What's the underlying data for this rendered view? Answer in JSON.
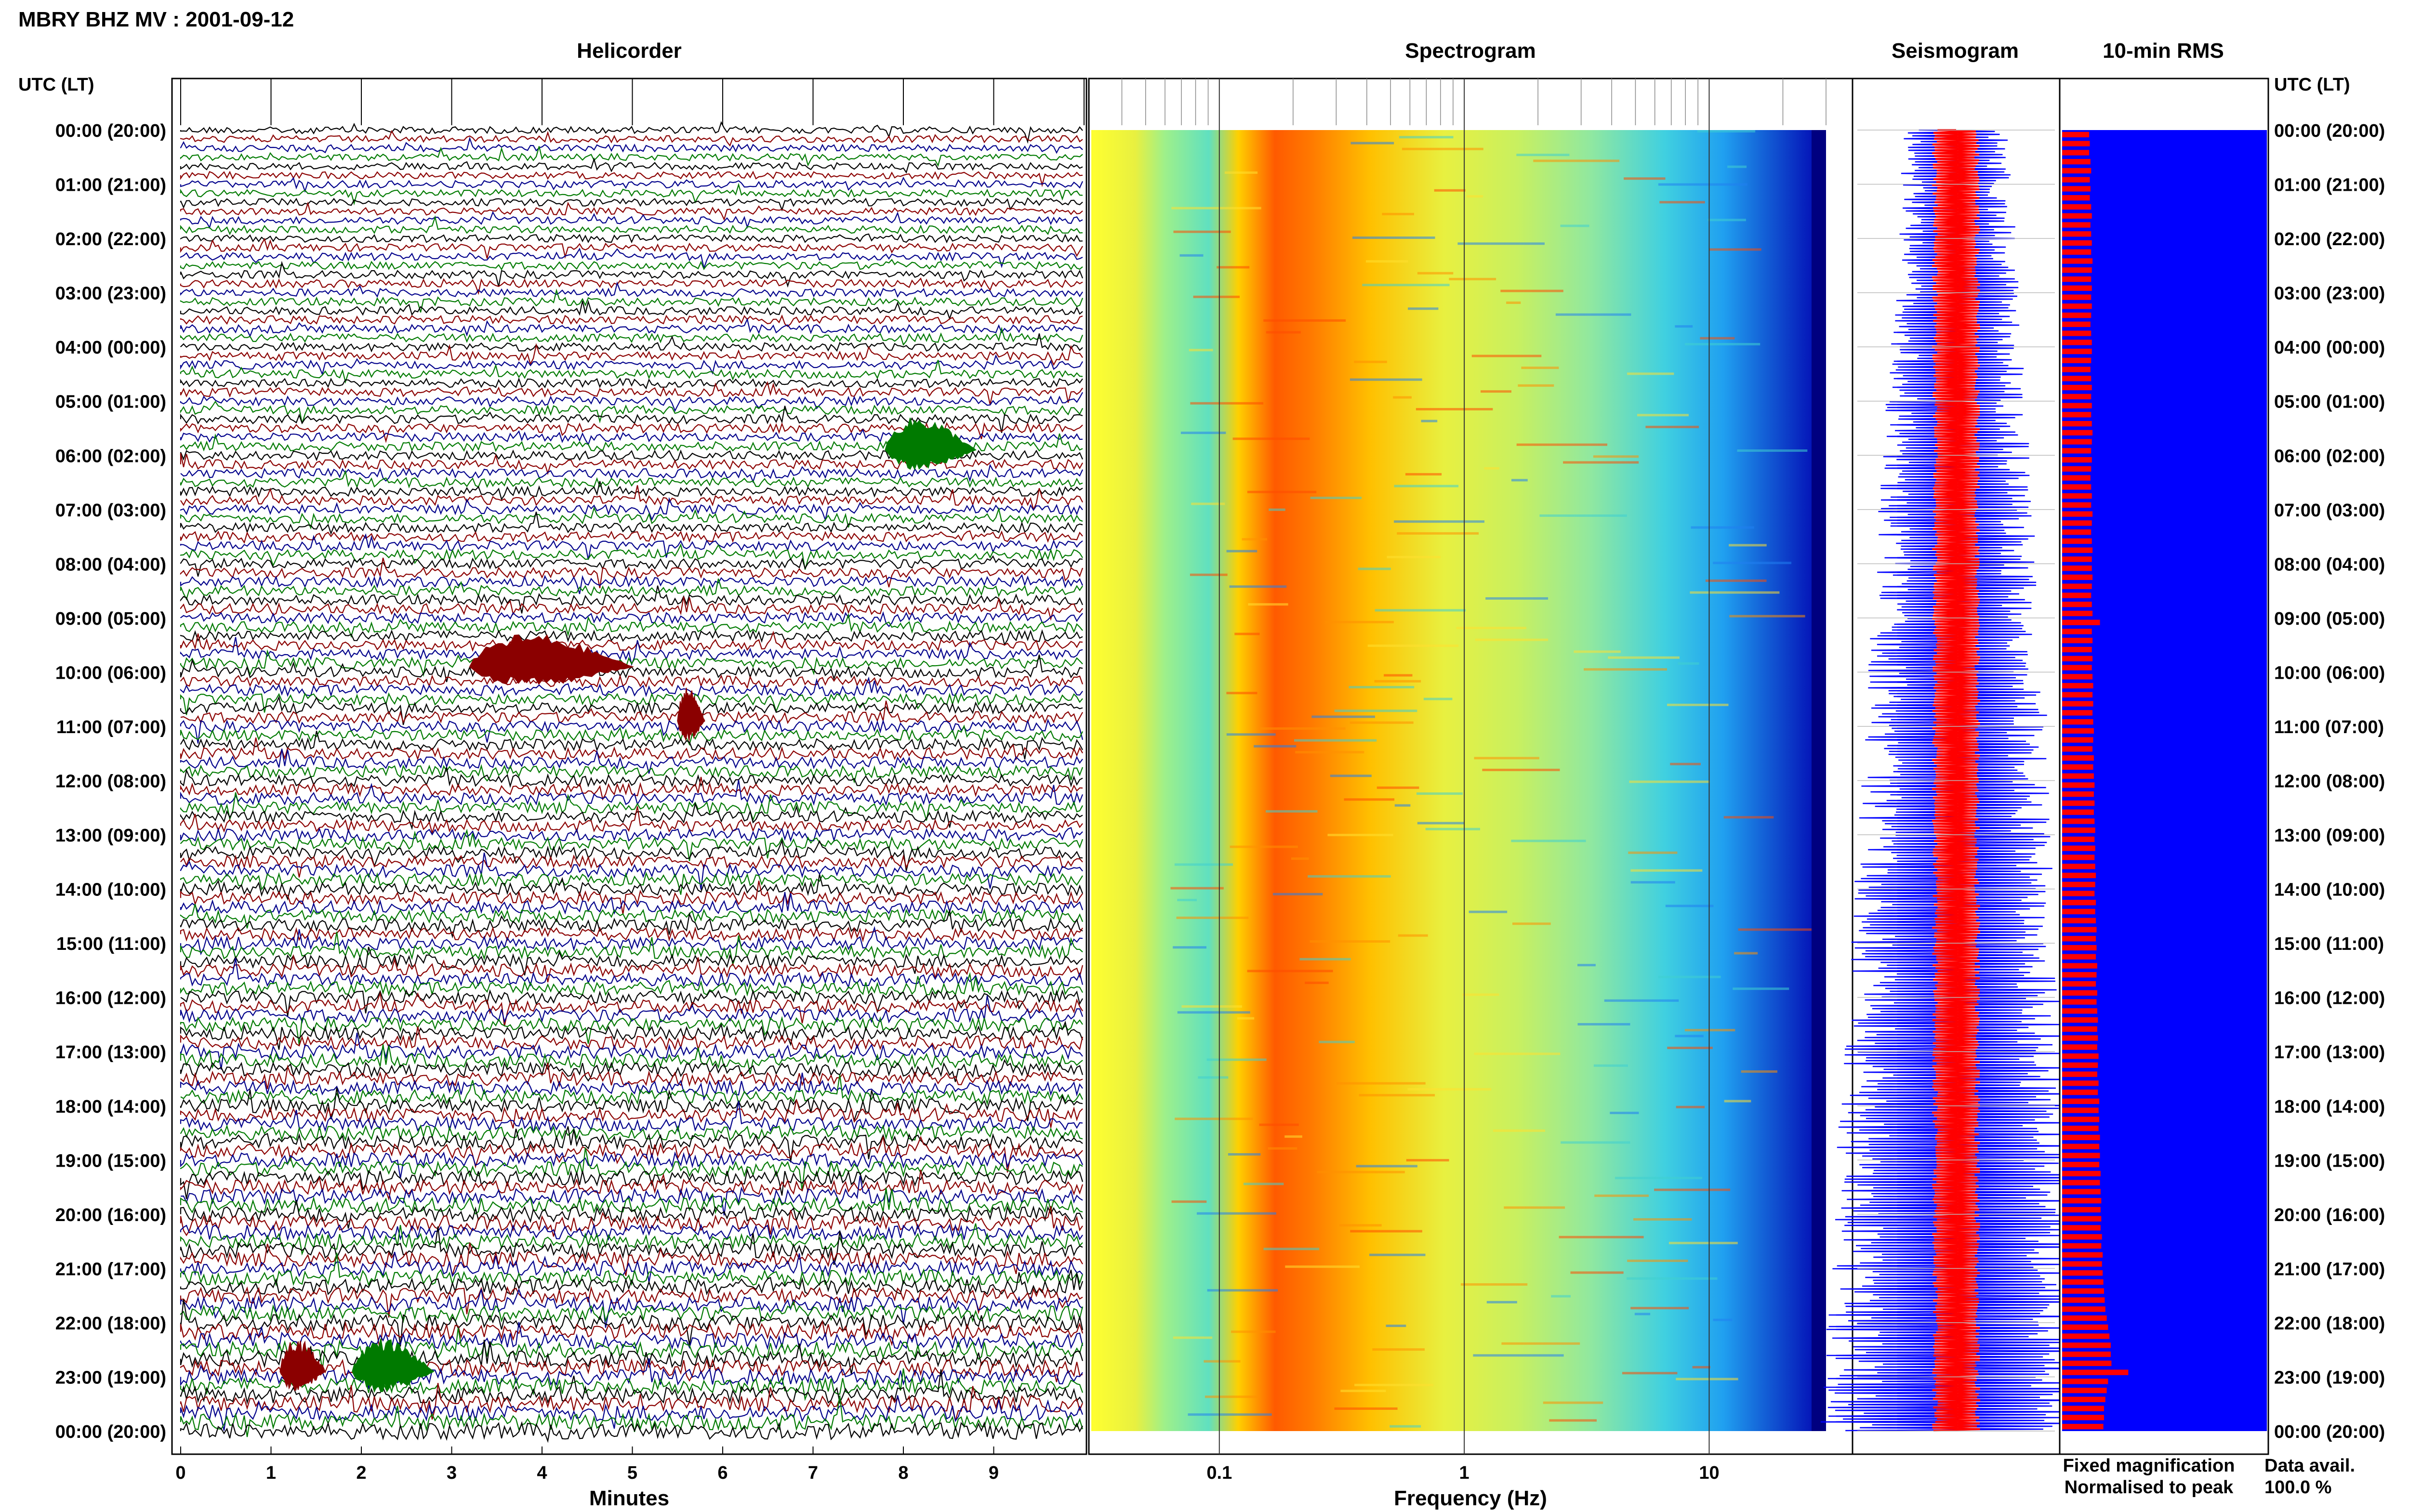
{
  "header": {
    "title": "MBRY BHZ MV : 2001-09-12"
  },
  "panels": {
    "helicorder": "Helicorder",
    "spectrogram": "Spectrogram",
    "seismogram": "Seismogram",
    "rms": "10-min RMS"
  },
  "axes": {
    "time_header_left": "UTC (LT)",
    "time_header_right": "UTC (LT)",
    "time_labels": [
      "00:00 (20:00)",
      "01:00 (21:00)",
      "02:00 (22:00)",
      "03:00 (23:00)",
      "04:00 (00:00)",
      "05:00 (01:00)",
      "06:00 (02:00)",
      "07:00 (03:00)",
      "08:00 (04:00)",
      "09:00 (05:00)",
      "10:00 (06:00)",
      "11:00 (07:00)",
      "12:00 (08:00)",
      "13:00 (09:00)",
      "14:00 (10:00)",
      "15:00 (11:00)",
      "16:00 (12:00)",
      "17:00 (13:00)",
      "18:00 (14:00)",
      "19:00 (15:00)",
      "20:00 (16:00)",
      "21:00 (17:00)",
      "22:00 (18:00)",
      "23:00 (19:00)",
      "00:00 (20:00)"
    ],
    "minutes_label": "Minutes",
    "minutes_ticks": [
      "0",
      "1",
      "2",
      "3",
      "4",
      "5",
      "6",
      "7",
      "8",
      "9"
    ],
    "frequency_label": "Frequency (Hz)",
    "frequency_ticks": [
      "0.1",
      "1",
      "10"
    ]
  },
  "legend": {
    "fixed": "Fixed magnification",
    "normalised": "Normalised to peak",
    "fixed_color": "#0000ff",
    "normalised_color": "#ff0000"
  },
  "data_availability": {
    "label": "Data avail.",
    "value": "100.0 %"
  },
  "colors": {
    "helicorder_traces": [
      "#000000",
      "#8b0000",
      "#00008b",
      "#007a00"
    ],
    "spectrogram_low": "#0000c8",
    "spectrogram_high": "#ff3000",
    "rms_bar": "#ff0000",
    "rms_background": "#0000ff"
  },
  "chart_data": [
    {
      "type": "line",
      "title": "Helicorder",
      "xlabel": "Minutes",
      "xlim": [
        0,
        10
      ],
      "rows_per_hour": 6,
      "hours": 24,
      "description_series": "10-minute seismic trace rows, colors cycle black / dark red / blue / green",
      "events": [
        {
          "hour": 5,
          "minute_start": 7.8,
          "minute_end": 8.8,
          "row_color": "green"
        },
        {
          "hour": 9,
          "minute_start": 3.2,
          "minute_end": 5.0,
          "row_color": "dark red"
        },
        {
          "hour": 10,
          "minute_start": 5.5,
          "minute_end": 5.8,
          "row_color": "dark red"
        },
        {
          "hour": 22,
          "minute_start": 1.9,
          "minute_end": 2.8,
          "row_color": "green"
        },
        {
          "hour": 22,
          "minute_start": 1.1,
          "minute_end": 1.6,
          "row_color": "dark red"
        }
      ]
    },
    {
      "type": "heatmap",
      "title": "Spectrogram",
      "xlabel": "Frequency (Hz)",
      "xscale": "log",
      "xlim": [
        0.03,
        30
      ],
      "x_ticks": [
        0.1,
        1,
        10
      ],
      "peak_band_hz": [
        0.15,
        0.35
      ],
      "secondary_band_hz": [
        0.5,
        3
      ],
      "upper_cutoff_hz": 25
    },
    {
      "type": "line",
      "title": "Seismogram",
      "series": [
        {
          "name": "Fixed magnification",
          "color": "#0000ff"
        },
        {
          "name": "Normalised to peak",
          "color": "#ff0000"
        }
      ]
    },
    {
      "type": "bar",
      "title": "10-min RMS",
      "orientation": "horizontal",
      "bins": 144,
      "relative_values": [
        0.4,
        0.41,
        0.4,
        0.42,
        0.43,
        0.41,
        0.42,
        0.41,
        0.43,
        0.44,
        0.42,
        0.43,
        0.44,
        0.43,
        0.45,
        0.44,
        0.43,
        0.44,
        0.43,
        0.44,
        0.43,
        0.42,
        0.43,
        0.44,
        0.44,
        0.43,
        0.42,
        0.43,
        0.44,
        0.43,
        0.44,
        0.43,
        0.44,
        0.45,
        0.44,
        0.43,
        0.44,
        0.43,
        0.42,
        0.43,
        0.44,
        0.43,
        0.45,
        0.44,
        0.43,
        0.44,
        0.45,
        0.44,
        0.44,
        0.45,
        0.44,
        0.43,
        0.44,
        0.45,
        0.56,
        0.44,
        0.45,
        0.44,
        0.45,
        0.44,
        0.45,
        0.46,
        0.45,
        0.46,
        0.45,
        0.46,
        0.47,
        0.46,
        0.45,
        0.47,
        0.46,
        0.47,
        0.48,
        0.47,
        0.48,
        0.47,
        0.48,
        0.49,
        0.48,
        0.49,
        0.48,
        0.49,
        0.5,
        0.49,
        0.48,
        0.5,
        0.49,
        0.5,
        0.51,
        0.5,
        0.51,
        0.5,
        0.52,
        0.51,
        0.5,
        0.52,
        0.51,
        0.52,
        0.53,
        0.52,
        0.53,
        0.52,
        0.54,
        0.53,
        0.52,
        0.54,
        0.53,
        0.55,
        0.54,
        0.55,
        0.54,
        0.56,
        0.55,
        0.56,
        0.55,
        0.57,
        0.56,
        0.57,
        0.58,
        0.57,
        0.58,
        0.57,
        0.59,
        0.58,
        0.6,
        0.59,
        0.6,
        0.61,
        0.62,
        0.63,
        0.64,
        0.66,
        0.68,
        0.7,
        0.72,
        0.72,
        0.73,
        0.98,
        0.68,
        0.66,
        0.64,
        0.62,
        0.62,
        0.61
      ]
    }
  ]
}
